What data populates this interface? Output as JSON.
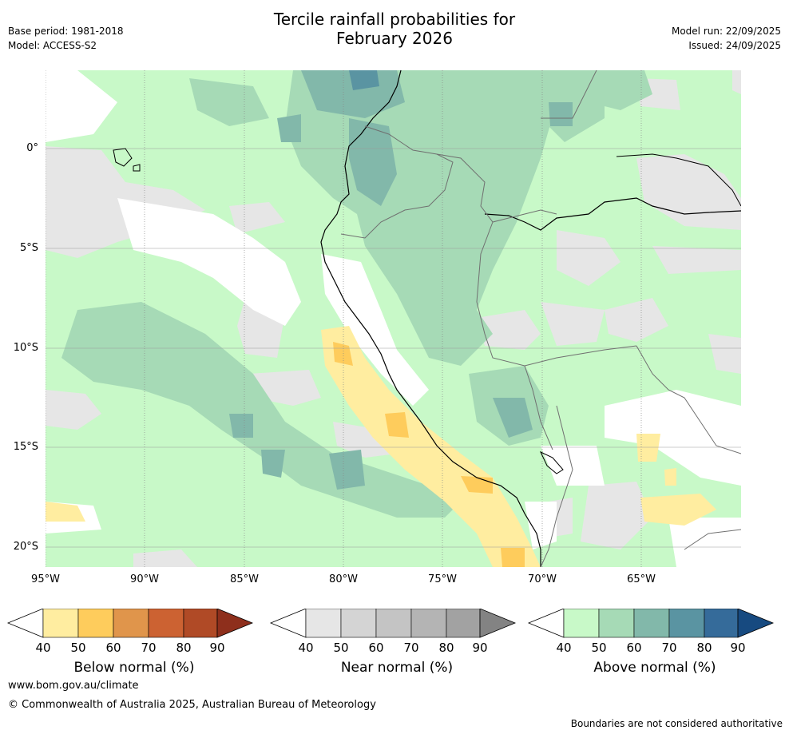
{
  "header": {
    "title_line1": "Tercile rainfall probabilities for",
    "title_line2": "February 2026",
    "base_period": "Base period: 1981-2018",
    "model": "Model: ACCESS-S2",
    "model_run": "Model run: 22/09/2025",
    "issued": "Issued: 24/09/2025"
  },
  "map": {
    "lat_labels": [
      "0°",
      "5°S",
      "10°S",
      "15°S",
      "20°S"
    ],
    "lon_labels": [
      "95°W",
      "90°W",
      "85°W",
      "80°W",
      "75°W",
      "70°W",
      "65°W"
    ]
  },
  "legends": [
    {
      "label": "Below normal (%)",
      "ticks": [
        "40",
        "50",
        "60",
        "70",
        "80",
        "90"
      ],
      "colors": [
        "#ffeda0",
        "#fecc5c",
        "#e0954b",
        "#cc6232",
        "#b04a26",
        "#8e2f1c"
      ]
    },
    {
      "label": "Near normal (%)",
      "ticks": [
        "40",
        "50",
        "60",
        "70",
        "80",
        "90"
      ],
      "colors": [
        "#e6e6e6",
        "#d4d4d4",
        "#c4c4c4",
        "#b4b4b4",
        "#a2a2a2",
        "#838383"
      ]
    },
    {
      "label": "Above normal (%)",
      "ticks": [
        "40",
        "50",
        "60",
        "70",
        "80",
        "90"
      ],
      "colors": [
        "#c8f9c8",
        "#a6dab6",
        "#82b8aa",
        "#5a94a2",
        "#356b9a",
        "#174a80"
      ]
    }
  ],
  "footer": {
    "url": "www.bom.gov.au/climate",
    "copyright": "© Commonwealth of Australia 2025, Australian Bureau of Meteorology",
    "disclaimer": "Boundaries are not considered authoritative"
  }
}
